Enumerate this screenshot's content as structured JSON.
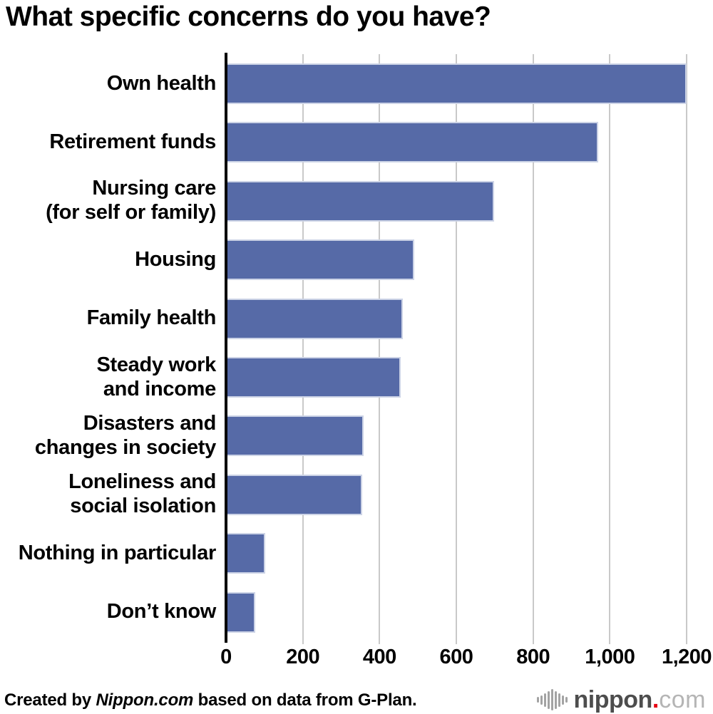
{
  "title": "What specific concerns do you have?",
  "footer": {
    "credit_prefix": "Created by ",
    "credit_source": "Nippon.com",
    "credit_suffix": " based on data from G-Plan.",
    "logo": {
      "name": "nippon.com-logo",
      "text_main": "nippon",
      "dot": ".",
      "text_suffix": "com",
      "dot_color": "#e60012"
    }
  },
  "chart_data": {
    "type": "bar",
    "orientation": "horizontal",
    "title": "What specific concerns do you have?",
    "categories": [
      "Own health",
      "Retirement funds",
      "Nursing care\n(for self or family)",
      "Housing",
      "Family health",
      "Steady work\nand income",
      "Disasters and\nchanges in society",
      "Loneliness and\nsocial isolation",
      "Nothing in particular",
      "Don’t know"
    ],
    "values": [
      1200,
      970,
      698,
      490,
      460,
      455,
      358,
      354,
      103,
      77
    ],
    "xlim": [
      0,
      1200
    ],
    "x_ticks": [
      0,
      200,
      400,
      600,
      800,
      1000,
      1200
    ],
    "x_tick_labels": [
      "0",
      "200",
      "400",
      "600",
      "800",
      "1,000",
      "1,200"
    ],
    "bar_color": "#566aa7",
    "bar_border_color": "#ccd3e6",
    "gridline_color": "#c9c9c9",
    "grid": true,
    "legend": false
  }
}
